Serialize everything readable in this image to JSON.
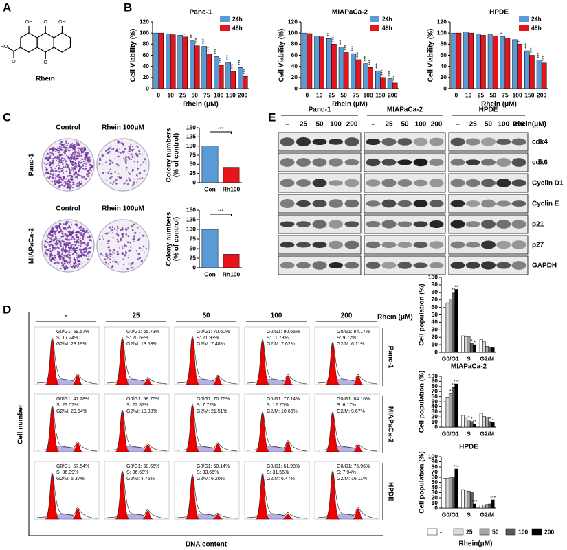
{
  "panel_labels": [
    "A",
    "B",
    "C",
    "D",
    "E"
  ],
  "structure": {
    "name": "Rhein",
    "atoms": [
      "OH",
      "O",
      "OH",
      "HO",
      "O",
      "O"
    ]
  },
  "chart_data": [
    {
      "type": "bar",
      "title": "Panc-1",
      "x_label": "Rhein (μM)",
      "y_label": "Cell Viability (%)",
      "categories": [
        "0",
        "10",
        "25",
        "50",
        "75",
        "100",
        "150",
        "200"
      ],
      "series": [
        {
          "name": "24h",
          "color": "#5b9bd5",
          "values": [
            100,
            98,
            96,
            87,
            76,
            58,
            47,
            38
          ],
          "significance": [
            null,
            null,
            null,
            "**",
            "***",
            "***",
            "***",
            "***"
          ]
        },
        {
          "name": "48h",
          "color": "#e8141b",
          "values": [
            100,
            97,
            93,
            77,
            62,
            42,
            31,
            22
          ],
          "significance": [
            null,
            null,
            "*",
            "***",
            "***",
            "***",
            "***",
            "***"
          ]
        }
      ],
      "ylim": [
        0,
        120
      ],
      "yticks": [
        0,
        20,
        40,
        60,
        80,
        100,
        120
      ],
      "legend": "upper right"
    },
    {
      "type": "bar",
      "title": "MIAPaCa-2",
      "x_label": "Rhein (μM)",
      "y_label": "Cell Viability (%)",
      "categories": [
        "0",
        "10",
        "25",
        "50",
        "75",
        "100",
        "150",
        "200"
      ],
      "series": [
        {
          "name": "24h",
          "color": "#5b9bd5",
          "values": [
            100,
            95,
            90,
            75,
            63,
            45,
            32,
            18
          ],
          "significance": [
            null,
            null,
            "**",
            "***",
            "***",
            "***",
            "***",
            "***"
          ]
        },
        {
          "name": "48h",
          "color": "#e8141b",
          "values": [
            99,
            93,
            80,
            65,
            52,
            38,
            20,
            10
          ],
          "significance": [
            null,
            null,
            "***",
            "***",
            "***",
            "***",
            "***",
            "***"
          ]
        }
      ],
      "ylim": [
        0,
        120
      ],
      "yticks": [
        0,
        20,
        40,
        60,
        80,
        100,
        120
      ],
      "legend": "upper right"
    },
    {
      "type": "bar",
      "title": "HPDE",
      "x_label": "Rhein (μM)",
      "y_label": "Cell Viability (%)",
      "categories": [
        "0",
        "10",
        "25",
        "50",
        "75",
        "100",
        "150",
        "200"
      ],
      "series": [
        {
          "name": "24h",
          "color": "#5b9bd5",
          "values": [
            100,
            102,
            98,
            97,
            94,
            88,
            68,
            51
          ],
          "significance": [
            null,
            null,
            null,
            null,
            "*",
            null,
            "***",
            "***"
          ]
        },
        {
          "name": "48h",
          "color": "#e8141b",
          "values": [
            100,
            100,
            96,
            95,
            91,
            80,
            60,
            46
          ],
          "significance": [
            null,
            null,
            null,
            null,
            null,
            "*",
            "***",
            "***"
          ]
        }
      ],
      "ylim": [
        0,
        120
      ],
      "yticks": [
        0,
        20,
        40,
        60,
        80,
        100,
        120
      ],
      "legend": "upper right"
    },
    {
      "type": "bar",
      "y_label": [
        "Colony numbers",
        "(% of control)"
      ],
      "categories": [
        "Con",
        "Rh100"
      ],
      "values": [
        100,
        42
      ],
      "colors": [
        "#5b9bd5",
        "#e8141b"
      ],
      "significance": "***",
      "ylim": [
        0,
        150
      ],
      "yticks": [
        0,
        25,
        50,
        75,
        100,
        125,
        150
      ]
    },
    {
      "type": "bar",
      "y_label": [
        "Colony numbers",
        "(% of control)"
      ],
      "categories": [
        "Con",
        "Rh100"
      ],
      "values": [
        100,
        35
      ],
      "colors": [
        "#5b9bd5",
        "#e8141b"
      ],
      "significance": "***",
      "ylim": [
        0,
        150
      ],
      "yticks": [
        0,
        25,
        50,
        75,
        100,
        125,
        150
      ]
    },
    {
      "type": "bar",
      "title": "Panc-1",
      "y_label": "Cell population (%)",
      "categories": [
        "G0/G1",
        "S",
        "G2/M"
      ],
      "series": [
        {
          "color": "#ffffff",
          "values": [
            60,
            22,
            17
          ]
        },
        {
          "color": "#d9d9d9",
          "values": [
            66,
            21,
            14
          ]
        },
        {
          "color": "#a6a6a6",
          "values": [
            71,
            21,
            8
          ]
        },
        {
          "color": "#595959",
          "values": [
            80,
            12,
            7
          ],
          "significance": [
            "**",
            "*",
            null
          ]
        },
        {
          "color": "#000000",
          "values": [
            84,
            10,
            6
          ],
          "significance": [
            "**",
            "*",
            null
          ]
        }
      ],
      "ylim": [
        0,
        100
      ],
      "yticks": [
        0,
        10,
        20,
        30,
        40,
        50,
        60,
        70,
        80,
        90,
        100
      ]
    },
    {
      "type": "bar",
      "title": "MIAPaCa-2",
      "y_label": "Cell population (%)",
      "categories": [
        "G0/G1",
        "S",
        "G2/M"
      ],
      "series": [
        {
          "color": "#ffffff",
          "values": [
            50,
            23,
            27
          ]
        },
        {
          "color": "#d9d9d9",
          "values": [
            59,
            20,
            21
          ]
        },
        {
          "color": "#a6a6a6",
          "values": [
            66,
            14,
            20
          ],
          "significance": [
            "*",
            "*",
            null
          ]
        },
        {
          "color": "#595959",
          "values": [
            78,
            11,
            11
          ],
          "significance": [
            "**",
            "*",
            "*"
          ]
        },
        {
          "color": "#000000",
          "values": [
            85,
            6,
            9
          ],
          "significance": [
            "***",
            "**",
            "*"
          ]
        }
      ],
      "ylim": [
        0,
        100
      ],
      "yticks": [
        0,
        10,
        20,
        30,
        40,
        50,
        60,
        70,
        80,
        90,
        100
      ]
    },
    {
      "type": "bar",
      "title": "HPDE",
      "y_label": "Cell population (%)",
      "categories": [
        "G0/G1",
        "S",
        "G2/M"
      ],
      "series": [
        {
          "name": "-",
          "color": "#ffffff",
          "values": [
            58,
            36,
            6
          ]
        },
        {
          "name": "25",
          "color": "#d9d9d9",
          "values": [
            58,
            35,
            6
          ]
        },
        {
          "name": "50",
          "color": "#a6a6a6",
          "values": [
            60,
            33,
            7
          ]
        },
        {
          "name": "100",
          "color": "#595959",
          "values": [
            61,
            31,
            8
          ]
        },
        {
          "name": "200",
          "color": "#000000",
          "values": [
            76,
            8,
            16
          ],
          "significance": [
            "***",
            "***",
            "***"
          ]
        }
      ],
      "ylim": [
        0,
        100
      ],
      "yticks": [
        0,
        10,
        20,
        30,
        40,
        50,
        60,
        70,
        80,
        90,
        100
      ],
      "legend": "bottom",
      "legend_title": "Rhein(μM)"
    }
  ],
  "colony": {
    "rows": [
      {
        "label": "Panc-1",
        "columns": [
          "Control",
          "Rhein 100μM"
        ]
      },
      {
        "label": "MIAPaCa-2",
        "columns": [
          "Control",
          "Rhein 100μM"
        ]
      }
    ]
  },
  "western": {
    "treatment_label": "Rhein(μM)",
    "groups": [
      {
        "name": "Panc-1",
        "lanes": [
          "–",
          "25",
          "50",
          "100",
          "200"
        ]
      },
      {
        "name": "MIAPaCa-2",
        "lanes": [
          "–",
          "25",
          "50",
          "100",
          "200"
        ]
      },
      {
        "name": "HPDE",
        "lanes": [
          "–",
          "25",
          "50",
          "100",
          "200"
        ]
      }
    ],
    "proteins": [
      "cdk4",
      "cdk6",
      "Cyclin D1",
      "Cyclin E",
      "p21",
      "p27",
      "GAPDH"
    ]
  },
  "flow": {
    "treatment_label": "Rhein (μM)",
    "y_label": "Cell number",
    "x_label": "DNA content",
    "columns": [
      "-",
      "25",
      "50",
      "100",
      "200"
    ],
    "rows": [
      {
        "label": "Panc-1",
        "cells": [
          [
            "G0/G1: 59.57%",
            "S: 17.24%",
            "G2/M: 23.19%"
          ],
          [
            "G0/G1: 65.73%",
            "S: 20.69%",
            "G2/M: 13.58%"
          ],
          [
            "G0/G1: 70.60%",
            "S: 21.93%",
            "G2/M: 7.48%"
          ],
          [
            "G0/G1: 80.65%",
            "S: 11.73%",
            "G2/M: 7.62%"
          ],
          [
            "G0/G1: 84.17%",
            "S: 9.72%",
            "G2/M: 6.11%"
          ]
        ]
      },
      {
        "label": "MIAPaCa-2",
        "cells": [
          [
            "G0/G1: 47.28%",
            "S: 23.07%",
            "G2/M: 29.64%"
          ],
          [
            "G0/G1: 58.75%",
            "S: 22.87%",
            "G2/M: 18.38%"
          ],
          [
            "G0/G1: 70.76%",
            "S: 7.72%",
            "G2/M: 21.51%"
          ],
          [
            "G0/G1: 77.14%",
            "S: 12.20%",
            "G2/M: 10.66%"
          ],
          [
            "G0/G1: 84.16%",
            "S: 6.17%",
            "G2/M: 9.67%"
          ]
        ]
      },
      {
        "label": "HPDE",
        "cells": [
          [
            "G0/G1: 57.54%",
            "S: 36.09%",
            "G2/M: 6.37%"
          ],
          [
            "G0/G1: 58.55%",
            "S: 36.68%",
            "G2/M: 4.76%"
          ],
          [
            "G0/G1: 60.14%",
            "S: 33.66%",
            "G2/M: 6.20%"
          ],
          [
            "G0/G1: 61.98%",
            "S: 31.55%",
            "G2/M: 6.47%"
          ],
          [
            "G0/G1: 75.96%",
            "S: 7.94%",
            "G2/M: 16.11%"
          ]
        ]
      }
    ]
  }
}
